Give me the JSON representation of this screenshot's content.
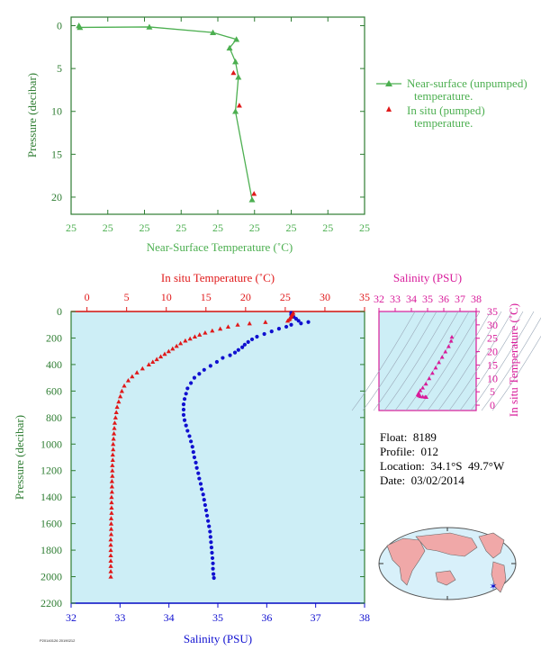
{
  "colors": {
    "green": "#4caf50",
    "axis_green": "#2e7d32",
    "red": "#e0191a",
    "blue": "#1010d0",
    "magenta": "#d81b9a",
    "panel_bg": "#cdeef6",
    "ts_line": "#9aa8b8",
    "land": "#f0a8a8",
    "ocean": "#d8f0fa"
  },
  "legend": {
    "near_surface_line1": "Near-surface (unpumped)",
    "near_surface_line2": "temperature.",
    "in_situ_line1": "In situ (pumped)",
    "in_situ_line2": "temperature."
  },
  "info": {
    "float_line": "Float:  8189",
    "profile_line": "Profile:  012",
    "location_line": "Location:  34.1°S  49.7°W",
    "date_line": "Date:  03/02/2014"
  },
  "stamp": "P20140126 20190212",
  "chart_data": [
    {
      "type": "line",
      "xlabel": "Near-Surface Temperature (˚C)",
      "ylabel": "Pressure (decibar)",
      "x_tick_labels": [
        "25",
        "25",
        "25",
        "25",
        "25",
        "25",
        "25",
        "25",
        "25"
      ],
      "y_ticks": [
        0,
        5,
        10,
        15,
        20
      ],
      "xlim": [
        24.85,
        25.15
      ],
      "ylim": [
        22,
        -1
      ],
      "series": [
        {
          "name": "Near-surface (unpumped) temperature.",
          "points": [
            [
              24.858,
              0.0
            ],
            [
              24.859,
              0.2
            ],
            [
              24.93,
              0.15
            ],
            [
              24.995,
              0.8
            ],
            [
              25.019,
              1.6
            ],
            [
              25.012,
              2.6
            ],
            [
              25.018,
              4.2
            ],
            [
              25.021,
              6.0
            ],
            [
              25.018,
              10.0
            ],
            [
              25.035,
              20.3
            ]
          ]
        },
        {
          "name": "In situ (pumped) temperature.",
          "points": [
            [
              25.016,
              5.5
            ],
            [
              25.022,
              9.3
            ],
            [
              25.037,
              19.6
            ]
          ]
        }
      ]
    },
    {
      "type": "scatter",
      "ylabel": "Pressure (decibar)",
      "top_axis_label": "In situ Temperature (˚C)",
      "bottom_axis_label": "Salinity (PSU)",
      "temp_ticks": [
        0,
        5,
        10,
        15,
        20,
        25,
        30,
        35
      ],
      "sal_ticks": [
        32,
        33,
        34,
        35,
        36,
        37,
        38
      ],
      "pressure_ticks": [
        0,
        200,
        400,
        600,
        800,
        1000,
        1200,
        1400,
        1600,
        1800,
        2000,
        2200
      ],
      "temp_lim": [
        -2,
        35
      ],
      "sal_lim": [
        32,
        38
      ],
      "pressure_lim": [
        0,
        2200
      ],
      "temperature_profile": [
        [
          26.0,
          10
        ],
        [
          25.9,
          20
        ],
        [
          25.8,
          30
        ],
        [
          25.7,
          40
        ],
        [
          25.6,
          50
        ],
        [
          25.5,
          60
        ],
        [
          25.3,
          70
        ],
        [
          22.5,
          80
        ],
        [
          20.5,
          90
        ],
        [
          19.0,
          100
        ],
        [
          17.8,
          115
        ],
        [
          16.8,
          130
        ],
        [
          15.8,
          145
        ],
        [
          14.9,
          160
        ],
        [
          14.2,
          175
        ],
        [
          13.6,
          190
        ],
        [
          13.0,
          205
        ],
        [
          12.4,
          220
        ],
        [
          11.8,
          240
        ],
        [
          11.3,
          260
        ],
        [
          10.8,
          280
        ],
        [
          10.3,
          300
        ],
        [
          9.8,
          320
        ],
        [
          9.3,
          340
        ],
        [
          8.8,
          360
        ],
        [
          8.3,
          380
        ],
        [
          7.8,
          400
        ],
        [
          7.0,
          430
        ],
        [
          6.3,
          460
        ],
        [
          5.7,
          490
        ],
        [
          5.2,
          520
        ],
        [
          4.7,
          560
        ],
        [
          4.4,
          600
        ],
        [
          4.2,
          640
        ],
        [
          4.0,
          680
        ],
        [
          3.8,
          720
        ],
        [
          3.7,
          760
        ],
        [
          3.6,
          800
        ],
        [
          3.5,
          840
        ],
        [
          3.45,
          880
        ],
        [
          3.4,
          920
        ],
        [
          3.35,
          960
        ],
        [
          3.3,
          1000
        ],
        [
          3.3,
          1040
        ],
        [
          3.25,
          1080
        ],
        [
          3.25,
          1120
        ],
        [
          3.2,
          1160
        ],
        [
          3.2,
          1200
        ],
        [
          3.2,
          1240
        ],
        [
          3.15,
          1280
        ],
        [
          3.15,
          1320
        ],
        [
          3.15,
          1360
        ],
        [
          3.1,
          1400
        ],
        [
          3.1,
          1440
        ],
        [
          3.1,
          1480
        ],
        [
          3.1,
          1520
        ],
        [
          3.05,
          1560
        ],
        [
          3.05,
          1600
        ],
        [
          3.05,
          1640
        ],
        [
          3.05,
          1680
        ],
        [
          3.0,
          1720
        ],
        [
          3.0,
          1760
        ],
        [
          3.0,
          1800
        ],
        [
          3.0,
          1840
        ],
        [
          3.0,
          1880
        ],
        [
          3.0,
          1920
        ],
        [
          3.0,
          1960
        ],
        [
          3.0,
          2000
        ]
      ],
      "salinity_profile": [
        [
          36.5,
          10
        ],
        [
          36.5,
          25
        ],
        [
          36.55,
          40
        ],
        [
          36.6,
          55
        ],
        [
          36.65,
          70
        ],
        [
          36.85,
          80
        ],
        [
          36.7,
          90
        ],
        [
          36.5,
          100
        ],
        [
          36.4,
          115
        ],
        [
          36.25,
          130
        ],
        [
          36.1,
          150
        ],
        [
          35.95,
          170
        ],
        [
          35.8,
          190
        ],
        [
          35.7,
          210
        ],
        [
          35.62,
          230
        ],
        [
          35.55,
          250
        ],
        [
          35.5,
          270
        ],
        [
          35.42,
          290
        ],
        [
          35.35,
          310
        ],
        [
          35.25,
          330
        ],
        [
          35.1,
          350
        ],
        [
          34.98,
          380
        ],
        [
          34.85,
          410
        ],
        [
          34.72,
          440
        ],
        [
          34.62,
          470
        ],
        [
          34.52,
          500
        ],
        [
          34.45,
          540
        ],
        [
          34.38,
          580
        ],
        [
          34.35,
          620
        ],
        [
          34.32,
          660
        ],
        [
          34.3,
          700
        ],
        [
          34.3,
          740
        ],
        [
          34.3,
          780
        ],
        [
          34.32,
          820
        ],
        [
          34.35,
          860
        ],
        [
          34.38,
          900
        ],
        [
          34.42,
          940
        ],
        [
          34.45,
          980
        ],
        [
          34.48,
          1020
        ],
        [
          34.5,
          1060
        ],
        [
          34.52,
          1100
        ],
        [
          34.55,
          1140
        ],
        [
          34.57,
          1180
        ],
        [
          34.6,
          1220
        ],
        [
          34.62,
          1260
        ],
        [
          34.65,
          1300
        ],
        [
          34.67,
          1340
        ],
        [
          34.7,
          1380
        ],
        [
          34.72,
          1420
        ],
        [
          34.74,
          1460
        ],
        [
          34.76,
          1500
        ],
        [
          34.78,
          1540
        ],
        [
          34.8,
          1580
        ],
        [
          34.82,
          1620
        ],
        [
          34.84,
          1660
        ],
        [
          34.85,
          1700
        ],
        [
          34.86,
          1740
        ],
        [
          34.87,
          1780
        ],
        [
          34.88,
          1820
        ],
        [
          34.89,
          1860
        ],
        [
          34.9,
          1900
        ],
        [
          34.9,
          1940
        ],
        [
          34.91,
          1980
        ],
        [
          34.92,
          2010
        ]
      ]
    },
    {
      "type": "scatter",
      "title": "Salinity (PSU)",
      "ylabel": "In situ Temperature (˚C)",
      "x_ticks": [
        32,
        33,
        34,
        35,
        36,
        37,
        38
      ],
      "y_ticks": [
        0,
        5,
        10,
        15,
        20,
        25,
        30,
        35
      ],
      "xlim": [
        32,
        38
      ],
      "ylim": [
        -2,
        35
      ],
      "points": [
        [
          36.5,
          25.5
        ],
        [
          36.45,
          24
        ],
        [
          36.3,
          22
        ],
        [
          36.1,
          20
        ],
        [
          35.9,
          18
        ],
        [
          35.7,
          16
        ],
        [
          35.5,
          14
        ],
        [
          35.3,
          12
        ],
        [
          35.1,
          10
        ],
        [
          34.9,
          8
        ],
        [
          34.7,
          6.5
        ],
        [
          34.55,
          5.5
        ],
        [
          34.45,
          4.5
        ],
        [
          34.4,
          4
        ],
        [
          34.45,
          3.6
        ],
        [
          34.55,
          3.3
        ],
        [
          34.7,
          3.2
        ],
        [
          34.85,
          3.1
        ],
        [
          34.92,
          3.0
        ]
      ]
    }
  ]
}
